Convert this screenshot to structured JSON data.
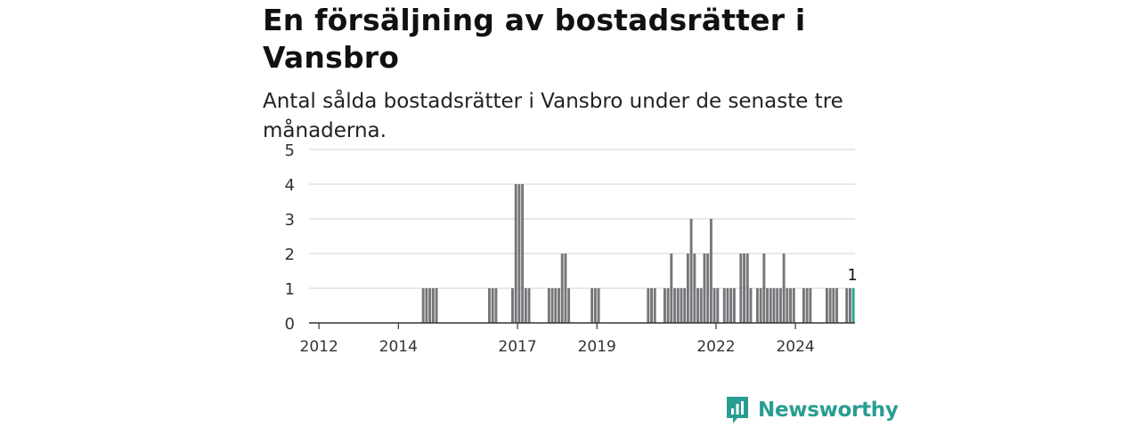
{
  "title": "En försäljning av bostadsrätter i Vansbro",
  "subtitle": "Antal sålda bostadsrätter i Vansbro under de senaste tre månaderna.",
  "brand": {
    "name": "Newsworthy",
    "icon": "newsworthy-logo-icon"
  },
  "colors": {
    "bar": "#76767a",
    "highlight": "#2aa198",
    "grid": "#d9d9d9",
    "axis": "#333333",
    "brand": "#2a9d92"
  },
  "chart_data": {
    "type": "bar",
    "xlabel": "",
    "ylabel": "",
    "ylim": [
      0,
      5
    ],
    "yticks": [
      0,
      1,
      2,
      3,
      4,
      5
    ],
    "xticks": [
      "2012",
      "2014",
      "2017",
      "2019",
      "2022",
      "2024"
    ],
    "grid": true,
    "x_start": "2011-10",
    "highlight_label": "1",
    "values": [
      0,
      0,
      0,
      0,
      0,
      0,
      0,
      0,
      0,
      0,
      0,
      0,
      0,
      0,
      0,
      0,
      0,
      0,
      0,
      0,
      0,
      0,
      0,
      0,
      0,
      0,
      0,
      0,
      0,
      0,
      0,
      0,
      0,
      0,
      1,
      1,
      1,
      1,
      1,
      0,
      0,
      0,
      0,
      0,
      0,
      0,
      0,
      0,
      0,
      0,
      0,
      0,
      0,
      0,
      1,
      1,
      1,
      0,
      0,
      0,
      0,
      1,
      4,
      4,
      4,
      1,
      1,
      0,
      0,
      0,
      0,
      0,
      1,
      1,
      1,
      1,
      2,
      2,
      1,
      0,
      0,
      0,
      0,
      0,
      0,
      1,
      1,
      1,
      0,
      0,
      0,
      0,
      0,
      0,
      0,
      0,
      0,
      0,
      0,
      0,
      0,
      0,
      1,
      1,
      1,
      0,
      0,
      1,
      1,
      2,
      1,
      1,
      1,
      1,
      2,
      3,
      2,
      1,
      1,
      2,
      2,
      3,
      1,
      1,
      0,
      1,
      1,
      1,
      1,
      0,
      2,
      2,
      2,
      1,
      0,
      1,
      1,
      2,
      1,
      1,
      1,
      1,
      1,
      2,
      1,
      1,
      1,
      0,
      0,
      1,
      1,
      1,
      0,
      0,
      0,
      0,
      1,
      1,
      1,
      1,
      0,
      0,
      1,
      1,
      1
    ]
  }
}
